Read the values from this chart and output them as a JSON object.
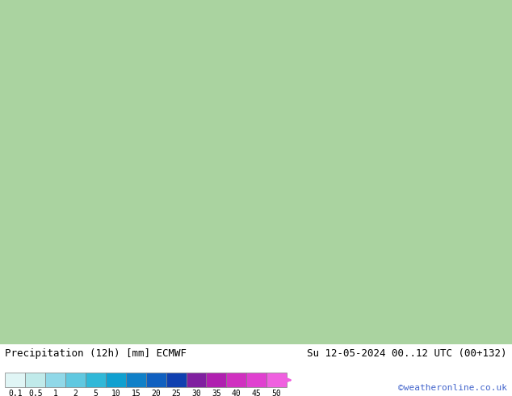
{
  "title_left": "Precipitation (12h) [mm] ECMWF",
  "title_right": "Su 12-05-2024 00..12 UTC (00+132)",
  "credit": "©weatheronline.co.uk",
  "colorbar_values": [
    0.1,
    0.5,
    1,
    2,
    5,
    10,
    15,
    20,
    25,
    30,
    35,
    40,
    45,
    50
  ],
  "colorbar_colors": [
    "#e0f5f5",
    "#c0eaea",
    "#90d8e8",
    "#60c8e0",
    "#30b8d8",
    "#10a0d0",
    "#1080c8",
    "#1060c0",
    "#1040b0",
    "#8020a0",
    "#b020b0",
    "#d030c0",
    "#e040d0",
    "#f060e0"
  ],
  "background_color": "#ffffff",
  "map_background": "#aad4a0",
  "bottom_bar_height": 0.13,
  "colorbar_label_fontsize": 8,
  "title_fontsize": 9,
  "credit_fontsize": 8,
  "credit_color": "#4466cc"
}
